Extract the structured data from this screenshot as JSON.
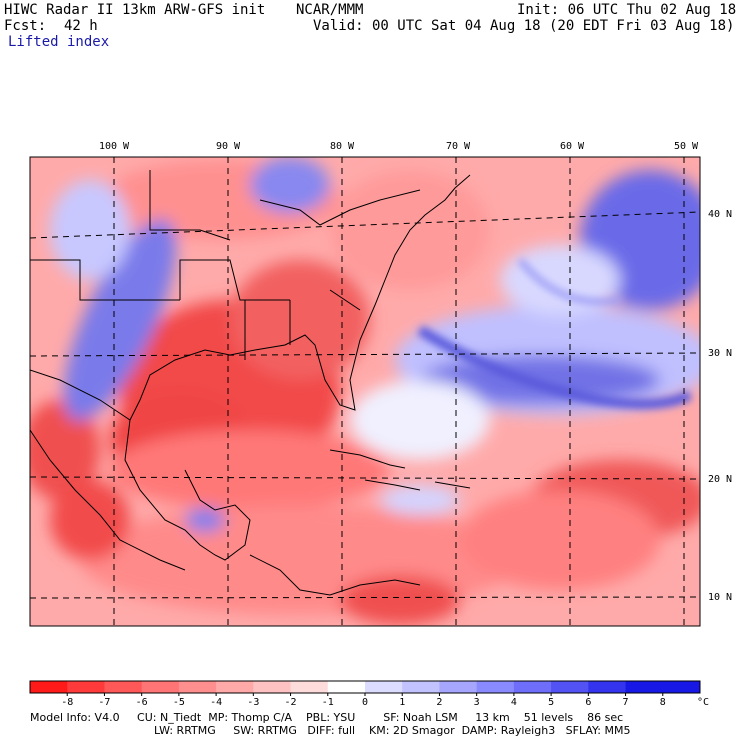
{
  "header": {
    "model_title": "HIWC Radar II 13km ARW-GFS init",
    "org": "NCAR/MMM",
    "init": "Init: 06 UTC Thu 02 Aug 18",
    "fcst_label": "Fcst:",
    "fcst_value": "42 h",
    "valid": "Valid: 00 UTC Sat 04 Aug 18 (20 EDT Fri 03 Aug 18)",
    "field": "Lifted index"
  },
  "map": {
    "lon_labels": [
      "100 W",
      "90 W",
      "80 W",
      "70 W",
      "60 W",
      "50 W"
    ],
    "lat_labels": [
      "40 N",
      "30 N",
      "20 N",
      "10 N"
    ]
  },
  "colorbar": {
    "ticks": [
      "-8",
      "-7",
      "-6",
      "-5",
      "-4",
      "-3",
      "-2",
      "-1",
      "0",
      "1",
      "2",
      "3",
      "4",
      "5",
      "6",
      "7",
      "8"
    ],
    "unit": "°C",
    "colors": [
      "#ff1a1a",
      "#ff3a3a",
      "#ff5858",
      "#ff7474",
      "#ff8f8f",
      "#ffa9a9",
      "#ffc2c2",
      "#ffdcdc",
      "#ffffff",
      "#dcdcff",
      "#c2c2ff",
      "#a6a6ff",
      "#8a8aff",
      "#6e6efa",
      "#5252f5",
      "#3434ee",
      "#1818e6"
    ]
  },
  "footer": {
    "line1": "Model Info: V4.0     CU: N_Tiedt  MP: Thomp C/A    PBL: YSU        SF: Noah LSM     13 km    51 levels    86 sec",
    "line2": "LW: RRTMG     SW: RRTMG   DIFF: full    KM: 2D Smagor  DAMP: Rayleigh3   SFLAY: MM5"
  }
}
